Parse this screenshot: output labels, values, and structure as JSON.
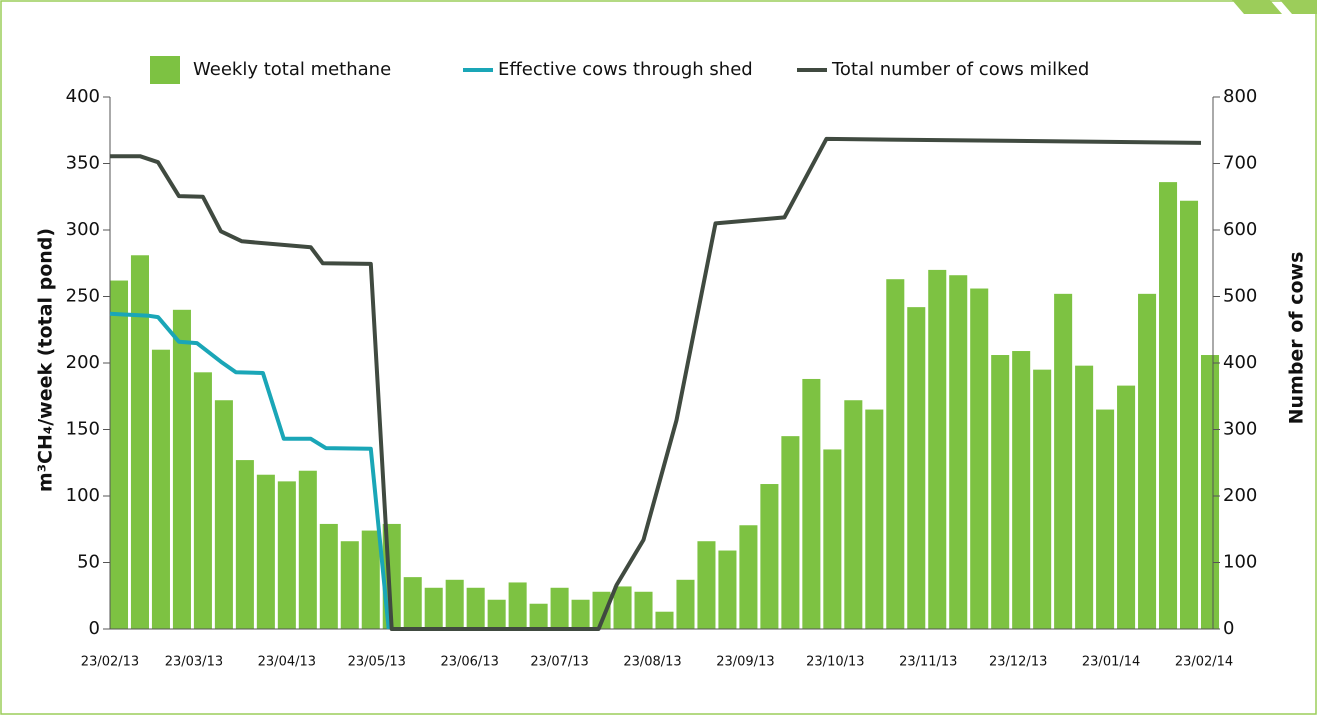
{
  "chart_data": {
    "type": "bar-line",
    "legend_position": "top",
    "y_label": "m³CH₄/week (total pond)",
    "y2_label": "Number of cows",
    "xlim": [
      "2013-02-23",
      "2014-02-26"
    ],
    "xticks": [
      {
        "value": "2013-02-23",
        "label": "23/02/13"
      },
      {
        "value": "2013-03-23",
        "label": "23/03/13"
      },
      {
        "value": "2013-04-23",
        "label": "23/04/13"
      },
      {
        "value": "2013-05-23",
        "label": "23/05/13"
      },
      {
        "value": "2013-06-23",
        "label": "23/06/13"
      },
      {
        "value": "2013-07-23",
        "label": "23/07/13"
      },
      {
        "value": "2013-08-23",
        "label": "23/08/13"
      },
      {
        "value": "2013-09-23",
        "label": "23/09/13"
      },
      {
        "value": "2013-10-23",
        "label": "23/10/13"
      },
      {
        "value": "2013-11-23",
        "label": "23/11/13"
      },
      {
        "value": "2013-12-23",
        "label": "23/12/13"
      },
      {
        "value": "2014-01-23",
        "label": "23/01/14"
      },
      {
        "value": "2014-02-23",
        "label": "23/02/14"
      }
    ],
    "ylim": [
      0,
      400
    ],
    "yticks": [
      0,
      50,
      100,
      150,
      200,
      250,
      300,
      350,
      400
    ],
    "y2lim": [
      0,
      800
    ],
    "y2ticks": [
      0,
      100,
      200,
      300,
      400,
      500,
      600,
      700,
      800
    ],
    "series": [
      {
        "name": "Weekly total methane",
        "kind": "bar",
        "color": "#7dc242",
        "x": [
          "2013-02-26",
          "2013-03-05",
          "2013-03-12",
          "2013-03-19",
          "2013-03-26",
          "2013-04-02",
          "2013-04-09",
          "2013-04-16",
          "2013-04-23",
          "2013-04-30",
          "2013-05-07",
          "2013-05-14",
          "2013-05-21",
          "2013-05-28",
          "2013-06-04",
          "2013-06-11",
          "2013-06-18",
          "2013-06-25",
          "2013-07-02",
          "2013-07-09",
          "2013-07-16",
          "2013-07-23",
          "2013-07-30",
          "2013-08-06",
          "2013-08-13",
          "2013-08-20",
          "2013-08-27",
          "2013-09-03",
          "2013-09-10",
          "2013-09-17",
          "2013-09-24",
          "2013-10-01",
          "2013-10-08",
          "2013-10-15",
          "2013-10-22",
          "2013-10-29",
          "2013-11-05",
          "2013-11-12",
          "2013-11-19",
          "2013-11-26",
          "2013-12-03",
          "2013-12-10",
          "2013-12-17",
          "2013-12-24",
          "2013-12-31",
          "2014-01-07",
          "2014-01-14",
          "2014-01-21",
          "2014-01-28",
          "2014-02-04",
          "2014-02-11",
          "2014-02-18",
          "2014-02-25"
        ],
        "values": [
          262,
          281,
          210,
          240,
          193,
          172,
          127,
          116,
          111,
          119,
          79,
          66,
          74,
          79,
          39,
          31,
          37,
          31,
          22,
          35,
          19,
          31,
          22,
          28,
          32,
          28,
          13,
          37,
          66,
          59,
          78,
          109,
          145,
          188,
          135,
          172,
          165,
          263,
          242,
          270,
          266,
          256,
          206,
          209,
          195,
          252,
          198,
          165,
          183,
          252,
          336,
          322,
          206
        ]
      },
      {
        "name": "Effective cows through shed",
        "kind": "line",
        "axis": "y2",
        "color": "#1aa6b7",
        "x": [
          "2013-02-23",
          "2013-03-08",
          "2013-03-11",
          "2013-03-18",
          "2013-03-24",
          "2013-04-01",
          "2013-04-06",
          "2013-04-15",
          "2013-04-22",
          "2013-05-01",
          "2013-05-06",
          "2013-05-21",
          "2013-05-27"
        ],
        "values": [
          474,
          471,
          469,
          432,
          430,
          402,
          386,
          385,
          286,
          286,
          272,
          271,
          0
        ]
      },
      {
        "name": "Total number of cows milked",
        "kind": "line",
        "axis": "y2",
        "color": "#404a40",
        "x": [
          "2013-02-23",
          "2013-03-05",
          "2013-03-11",
          "2013-03-18",
          "2013-03-26",
          "2013-04-01",
          "2013-04-08",
          "2013-05-01",
          "2013-05-05",
          "2013-05-21",
          "2013-05-28",
          "2013-08-05",
          "2013-08-11",
          "2013-08-20",
          "2013-08-31",
          "2013-09-13",
          "2013-10-06",
          "2013-10-20",
          "2014-02-22"
        ],
        "values": [
          711,
          711,
          702,
          651,
          650,
          598,
          583,
          574,
          550,
          549,
          0,
          0,
          66,
          134,
          314,
          610,
          619,
          737,
          731
        ]
      }
    ]
  }
}
